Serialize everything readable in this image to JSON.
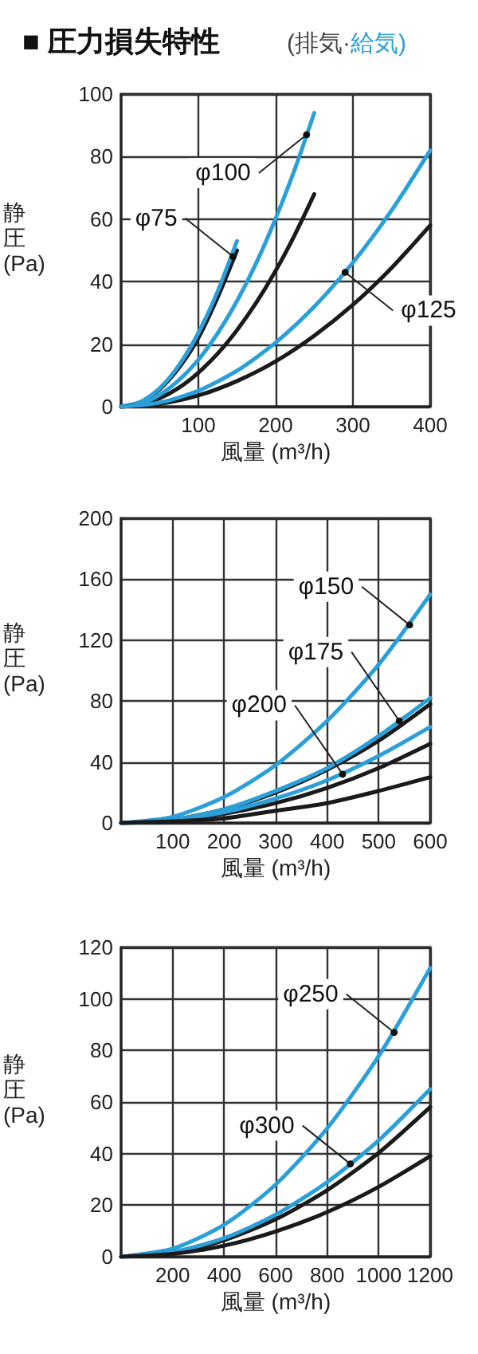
{
  "chart_data": [
    {
      "type": "line",
      "title": "■ 圧力損失特性",
      "subtitle": "(排気·給気)",
      "xlabel": "風量 (m³/h)",
      "ylabel": "静圧(Pa)",
      "xlim": [
        0,
        400
      ],
      "ylim": [
        0,
        100
      ],
      "xticks": [
        100,
        200,
        300,
        400
      ],
      "yticks": [
        0,
        20,
        40,
        60,
        80,
        100
      ],
      "grid": true,
      "marker": "none",
      "line_style": "solid",
      "series": [
        {
          "color": "#1a1a1a",
          "x": [
            0,
            25,
            50,
            75,
            100,
            125,
            150
          ],
          "values": [
            0,
            1.4,
            5.6,
            12.5,
            22,
            35,
            50
          ]
        },
        {
          "color": "#2a9fd8",
          "x": [
            0,
            25,
            50,
            75,
            100,
            125,
            150
          ],
          "values": [
            0,
            1.5,
            5.9,
            13.3,
            23.6,
            36.9,
            53
          ]
        },
        {
          "color": "#1a1a1a",
          "x": [
            0,
            25,
            50,
            75,
            100,
            125,
            150,
            175,
            200,
            225,
            250
          ],
          "values": [
            0,
            0.7,
            2.7,
            6.1,
            10.9,
            17,
            24.5,
            33.3,
            43.5,
            55.1,
            68
          ]
        },
        {
          "color": "#2a9fd8",
          "x": [
            0,
            25,
            50,
            75,
            100,
            125,
            150,
            175,
            200,
            225,
            250
          ],
          "values": [
            0,
            0.9,
            3.8,
            8.5,
            15,
            23.5,
            33.8,
            46,
            60.2,
            76.1,
            94
          ]
        },
        {
          "color": "#1a1a1a",
          "x": [
            0,
            50,
            100,
            150,
            200,
            250,
            300,
            350,
            400
          ],
          "values": [
            0,
            0.9,
            3.6,
            8.2,
            14.5,
            22.7,
            32.6,
            44.4,
            58
          ]
        },
        {
          "color": "#2a9fd8",
          "x": [
            0,
            50,
            100,
            150,
            200,
            250,
            300,
            350,
            400
          ],
          "values": [
            0,
            1.3,
            5.1,
            11.5,
            20.5,
            32,
            46.1,
            62.8,
            82
          ]
        }
      ],
      "annotations": [
        {
          "text": "φ75",
          "x": 145,
          "y": 48
        },
        {
          "text": "φ100",
          "x": 240,
          "y": 87
        },
        {
          "text": "φ125",
          "x": 290,
          "y": 43
        }
      ]
    },
    {
      "type": "line",
      "xlabel": "風量 (m³/h)",
      "ylabel": "静圧(Pa)",
      "xlim": [
        0,
        600
      ],
      "ylim": [
        0,
        200
      ],
      "xticks": [
        100,
        200,
        300,
        400,
        500,
        600
      ],
      "yticks": [
        0,
        40,
        80,
        120,
        160,
        200
      ],
      "grid": true,
      "marker": "none",
      "line_style": "solid",
      "series": [
        {
          "color": "#2a9fd8",
          "x": [
            0,
            100,
            200,
            300,
            400,
            500,
            600
          ],
          "values": [
            0,
            4,
            17,
            38,
            67,
            104,
            150
          ]
        },
        {
          "color": "#1a1a1a",
          "x": [
            0,
            100,
            200,
            300,
            400,
            500,
            600
          ],
          "values": [
            0,
            2,
            9,
            20,
            35,
            54,
            78
          ]
        },
        {
          "color": "#2a9fd8",
          "x": [
            0,
            100,
            200,
            300,
            400,
            500,
            600
          ],
          "values": [
            0,
            2,
            9,
            21,
            36,
            57,
            82
          ]
        },
        {
          "color": "#1a1a1a",
          "x": [
            0,
            100,
            200,
            300,
            400,
            500,
            600
          ],
          "values": [
            0,
            1,
            6,
            13,
            23,
            36,
            52
          ]
        },
        {
          "color": "#2a9fd8",
          "x": [
            0,
            100,
            200,
            300,
            400,
            500,
            600
          ],
          "values": [
            0,
            2,
            7,
            16,
            28,
            44,
            63
          ]
        },
        {
          "color": "#1a1a1a",
          "x": [
            0,
            100,
            200,
            300,
            400,
            500,
            600
          ],
          "values": [
            0,
            1,
            3,
            8,
            13,
            21,
            30
          ]
        }
      ],
      "annotations": [
        {
          "text": "φ150",
          "x": 560,
          "y": 130
        },
        {
          "text": "φ175",
          "x": 540,
          "y": 67
        },
        {
          "text": "φ200",
          "x": 430,
          "y": 32
        }
      ]
    },
    {
      "type": "line",
      "xlabel": "風量 (m³/h)",
      "ylabel": "静圧(Pa)",
      "xlim": [
        0,
        1200
      ],
      "ylim": [
        0,
        120
      ],
      "xticks": [
        200,
        400,
        600,
        800,
        1000,
        1200
      ],
      "yticks": [
        0,
        20,
        40,
        60,
        80,
        100,
        120
      ],
      "grid": true,
      "marker": "none",
      "line_style": "solid",
      "series": [
        {
          "color": "#2a9fd8",
          "x": [
            0,
            200,
            400,
            600,
            800,
            1000,
            1200
          ],
          "values": [
            0,
            3.1,
            12.4,
            28,
            49.8,
            77.8,
            112
          ]
        },
        {
          "color": "#1a1a1a",
          "x": [
            0,
            200,
            400,
            600,
            800,
            1000,
            1200
          ],
          "values": [
            0,
            1.6,
            6.4,
            14.5,
            25.8,
            40.3,
            58
          ]
        },
        {
          "color": "#2a9fd8",
          "x": [
            0,
            200,
            400,
            600,
            800,
            1000,
            1200
          ],
          "values": [
            0,
            1.8,
            7.2,
            16.3,
            28.9,
            45.1,
            65
          ]
        },
        {
          "color": "#1a1a1a",
          "x": [
            0,
            200,
            400,
            600,
            800,
            1000,
            1200
          ],
          "values": [
            0,
            1.1,
            4.3,
            9.8,
            17.3,
            27.1,
            39
          ]
        }
      ],
      "annotations": [
        {
          "text": "φ250",
          "x": 1060,
          "y": 87
        },
        {
          "text": "φ300",
          "x": 890,
          "y": 36
        }
      ]
    }
  ]
}
